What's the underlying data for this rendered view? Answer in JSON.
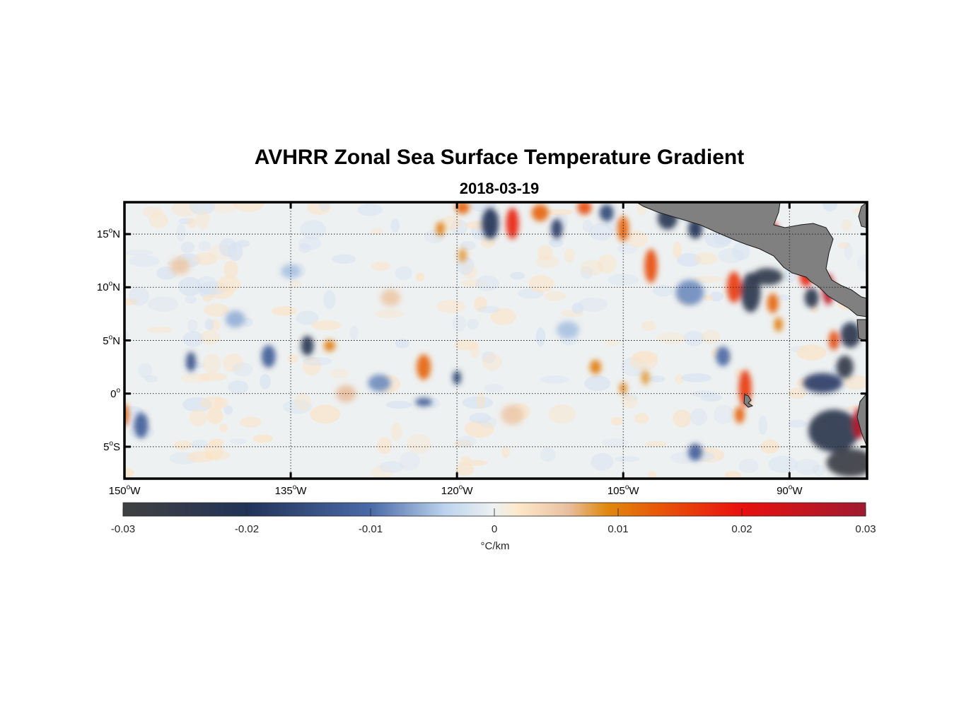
{
  "title": "AVHRR Zonal Sea Surface Temperature Gradient",
  "subtitle": "2018-03-19",
  "map": {
    "lon_range": [
      -150,
      -83
    ],
    "lat_range": [
      -8,
      18
    ],
    "land_color": "#808080",
    "grid": "dotted",
    "y_ticks": [
      {
        "value": 15,
        "num": "15",
        "hemi": "N"
      },
      {
        "value": 10,
        "num": "10",
        "hemi": "N"
      },
      {
        "value": 5,
        "num": "5",
        "hemi": "N"
      },
      {
        "value": 0,
        "num": "0",
        "hemi": ""
      },
      {
        "value": -5,
        "num": "5",
        "hemi": "S"
      }
    ],
    "x_ticks": [
      {
        "value": -150,
        "num": "150",
        "hemi": "W"
      },
      {
        "value": -135,
        "num": "135",
        "hemi": "W"
      },
      {
        "value": -120,
        "num": "120",
        "hemi": "W"
      },
      {
        "value": -105,
        "num": "105",
        "hemi": "W"
      },
      {
        "value": -90,
        "num": "90",
        "hemi": "W"
      }
    ],
    "features": [
      {
        "lon": -119.5,
        "lat": 17.5,
        "v": 0.012,
        "rx": 10,
        "ry": 9
      },
      {
        "lon": -117.0,
        "lat": 16.0,
        "v": -0.02,
        "rx": 12,
        "ry": 22
      },
      {
        "lon": -115.0,
        "lat": 16.0,
        "v": 0.018,
        "rx": 9,
        "ry": 22
      },
      {
        "lon": -112.5,
        "lat": 17.0,
        "v": 0.012,
        "rx": 12,
        "ry": 12
      },
      {
        "lon": -111.0,
        "lat": 15.5,
        "v": -0.018,
        "rx": 8,
        "ry": 14
      },
      {
        "lon": -108.5,
        "lat": 17.5,
        "v": 0.014,
        "rx": 10,
        "ry": 10
      },
      {
        "lon": -106.5,
        "lat": 17.0,
        "v": -0.016,
        "rx": 10,
        "ry": 12
      },
      {
        "lon": -105.0,
        "lat": 15.5,
        "v": 0.012,
        "rx": 8,
        "ry": 18
      },
      {
        "lon": -101.0,
        "lat": 16.5,
        "v": -0.022,
        "rx": 14,
        "ry": 16
      },
      {
        "lon": -98.5,
        "lat": 15.5,
        "v": -0.02,
        "rx": 10,
        "ry": 14
      },
      {
        "lon": -102.5,
        "lat": 12.0,
        "v": 0.014,
        "rx": 9,
        "ry": 24
      },
      {
        "lon": -99.0,
        "lat": 9.5,
        "v": -0.008,
        "rx": 20,
        "ry": 18
      },
      {
        "lon": -95.0,
        "lat": 10.0,
        "v": 0.016,
        "rx": 10,
        "ry": 22
      },
      {
        "lon": -93.5,
        "lat": 9.5,
        "v": -0.024,
        "rx": 14,
        "ry": 28
      },
      {
        "lon": -92.0,
        "lat": 11.0,
        "v": -0.025,
        "rx": 22,
        "ry": 12
      },
      {
        "lon": -91.5,
        "lat": 8.5,
        "v": 0.012,
        "rx": 8,
        "ry": 14
      },
      {
        "lon": -88.5,
        "lat": 11.0,
        "v": 0.018,
        "rx": 9,
        "ry": 14
      },
      {
        "lon": -88.0,
        "lat": 9.0,
        "v": -0.024,
        "rx": 10,
        "ry": 14
      },
      {
        "lon": -86.5,
        "lat": 9.8,
        "v": 0.026,
        "rx": 8,
        "ry": 22
      },
      {
        "lon": -91.5,
        "lat": 15.5,
        "v": 0.022,
        "rx": 7,
        "ry": 9
      },
      {
        "lon": -84.5,
        "lat": 5.5,
        "v": -0.024,
        "rx": 14,
        "ry": 18
      },
      {
        "lon": -85.0,
        "lat": 2.5,
        "v": -0.026,
        "rx": 12,
        "ry": 16
      },
      {
        "lon": -86.0,
        "lat": 5.0,
        "v": 0.014,
        "rx": 7,
        "ry": 14
      },
      {
        "lon": -87.0,
        "lat": 1.0,
        "v": -0.018,
        "rx": 28,
        "ry": 14
      },
      {
        "lon": -86.0,
        "lat": -3.5,
        "v": -0.024,
        "rx": 36,
        "ry": 30
      },
      {
        "lon": -84.5,
        "lat": -6.5,
        "v": -0.028,
        "rx": 34,
        "ry": 20
      },
      {
        "lon": -83.7,
        "lat": -2.8,
        "v": 0.027,
        "rx": 9,
        "ry": 22
      },
      {
        "lon": -94.0,
        "lat": 0.5,
        "v": 0.016,
        "rx": 9,
        "ry": 26
      },
      {
        "lon": -94.5,
        "lat": -2.0,
        "v": 0.012,
        "rx": 7,
        "ry": 12
      },
      {
        "lon": -96.0,
        "lat": 3.5,
        "v": -0.01,
        "rx": 10,
        "ry": 14
      },
      {
        "lon": -150.0,
        "lat": -2.0,
        "v": 0.012,
        "rx": 6,
        "ry": 16
      },
      {
        "lon": -148.5,
        "lat": -3.0,
        "v": -0.012,
        "rx": 10,
        "ry": 18
      },
      {
        "lon": -144.0,
        "lat": 3.0,
        "v": -0.014,
        "rx": 7,
        "ry": 14
      },
      {
        "lon": -137.0,
        "lat": 3.5,
        "v": -0.012,
        "rx": 10,
        "ry": 16
      },
      {
        "lon": -133.5,
        "lat": 4.5,
        "v": -0.022,
        "rx": 9,
        "ry": 14
      },
      {
        "lon": -131.5,
        "lat": 4.5,
        "v": 0.01,
        "rx": 8,
        "ry": 8
      },
      {
        "lon": -123.0,
        "lat": 2.5,
        "v": 0.012,
        "rx": 10,
        "ry": 18
      },
      {
        "lon": -120.0,
        "lat": 1.5,
        "v": -0.016,
        "rx": 6,
        "ry": 10
      },
      {
        "lon": -127.0,
        "lat": 1.0,
        "v": -0.008,
        "rx": 16,
        "ry": 12
      },
      {
        "lon": -123.0,
        "lat": -0.8,
        "v": -0.012,
        "rx": 12,
        "ry": 6
      },
      {
        "lon": -121.5,
        "lat": 15.5,
        "v": 0.01,
        "rx": 6,
        "ry": 10
      },
      {
        "lon": -119.5,
        "lat": 13.0,
        "v": 0.008,
        "rx": 6,
        "ry": 10
      },
      {
        "lon": -107.5,
        "lat": 2.5,
        "v": 0.01,
        "rx": 8,
        "ry": 10
      },
      {
        "lon": -105.0,
        "lat": 0.5,
        "v": 0.01,
        "rx": 5,
        "ry": 8
      },
      {
        "lon": -103.0,
        "lat": 1.5,
        "v": 0.008,
        "rx": 6,
        "ry": 10
      },
      {
        "lon": -98.5,
        "lat": -5.5,
        "v": -0.012,
        "rx": 10,
        "ry": 12
      },
      {
        "lon": -91.0,
        "lat": 6.5,
        "v": 0.01,
        "rx": 6,
        "ry": 10
      },
      {
        "lon": -130.0,
        "lat": 0.0,
        "v": 0.006,
        "rx": 14,
        "ry": 12
      },
      {
        "lon": -140.0,
        "lat": 7.0,
        "v": -0.006,
        "rx": 14,
        "ry": 12
      },
      {
        "lon": -115.0,
        "lat": -2.0,
        "v": 0.005,
        "rx": 16,
        "ry": 14
      },
      {
        "lon": -110.0,
        "lat": 6.0,
        "v": -0.005,
        "rx": 16,
        "ry": 12
      },
      {
        "lon": -145.0,
        "lat": 12.0,
        "v": 0.005,
        "rx": 14,
        "ry": 12
      },
      {
        "lon": -135.0,
        "lat": 11.5,
        "v": -0.005,
        "rx": 14,
        "ry": 10
      },
      {
        "lon": -126.0,
        "lat": 9.0,
        "v": 0.005,
        "rx": 14,
        "ry": 12
      }
    ]
  },
  "colorbar": {
    "range": [
      -0.03,
      0.03
    ],
    "stops": [
      {
        "v": -0.03,
        "color": "#404040"
      },
      {
        "v": -0.02,
        "color": "#223358"
      },
      {
        "v": -0.01,
        "color": "#4a6aa8"
      },
      {
        "v": -0.004,
        "color": "#bcd3ee"
      },
      {
        "v": 0.0,
        "color": "#eef1f1"
      },
      {
        "v": 0.002,
        "color": "#fde8c8"
      },
      {
        "v": 0.006,
        "color": "#e8bfa0"
      },
      {
        "v": 0.009,
        "color": "#e08a10"
      },
      {
        "v": 0.013,
        "color": "#e85a08"
      },
      {
        "v": 0.02,
        "color": "#e8100e"
      },
      {
        "v": 0.03,
        "color": "#a01a30"
      }
    ],
    "ticks": [
      {
        "value": -0.03,
        "label": "-0.03"
      },
      {
        "value": -0.02,
        "label": "-0.02"
      },
      {
        "value": -0.01,
        "label": "-0.01"
      },
      {
        "value": 0,
        "label": "0"
      },
      {
        "value": 0.01,
        "label": "0.01"
      },
      {
        "value": 0.02,
        "label": "0.02"
      },
      {
        "value": 0.03,
        "label": "0.03"
      }
    ],
    "units": "°C/km"
  }
}
